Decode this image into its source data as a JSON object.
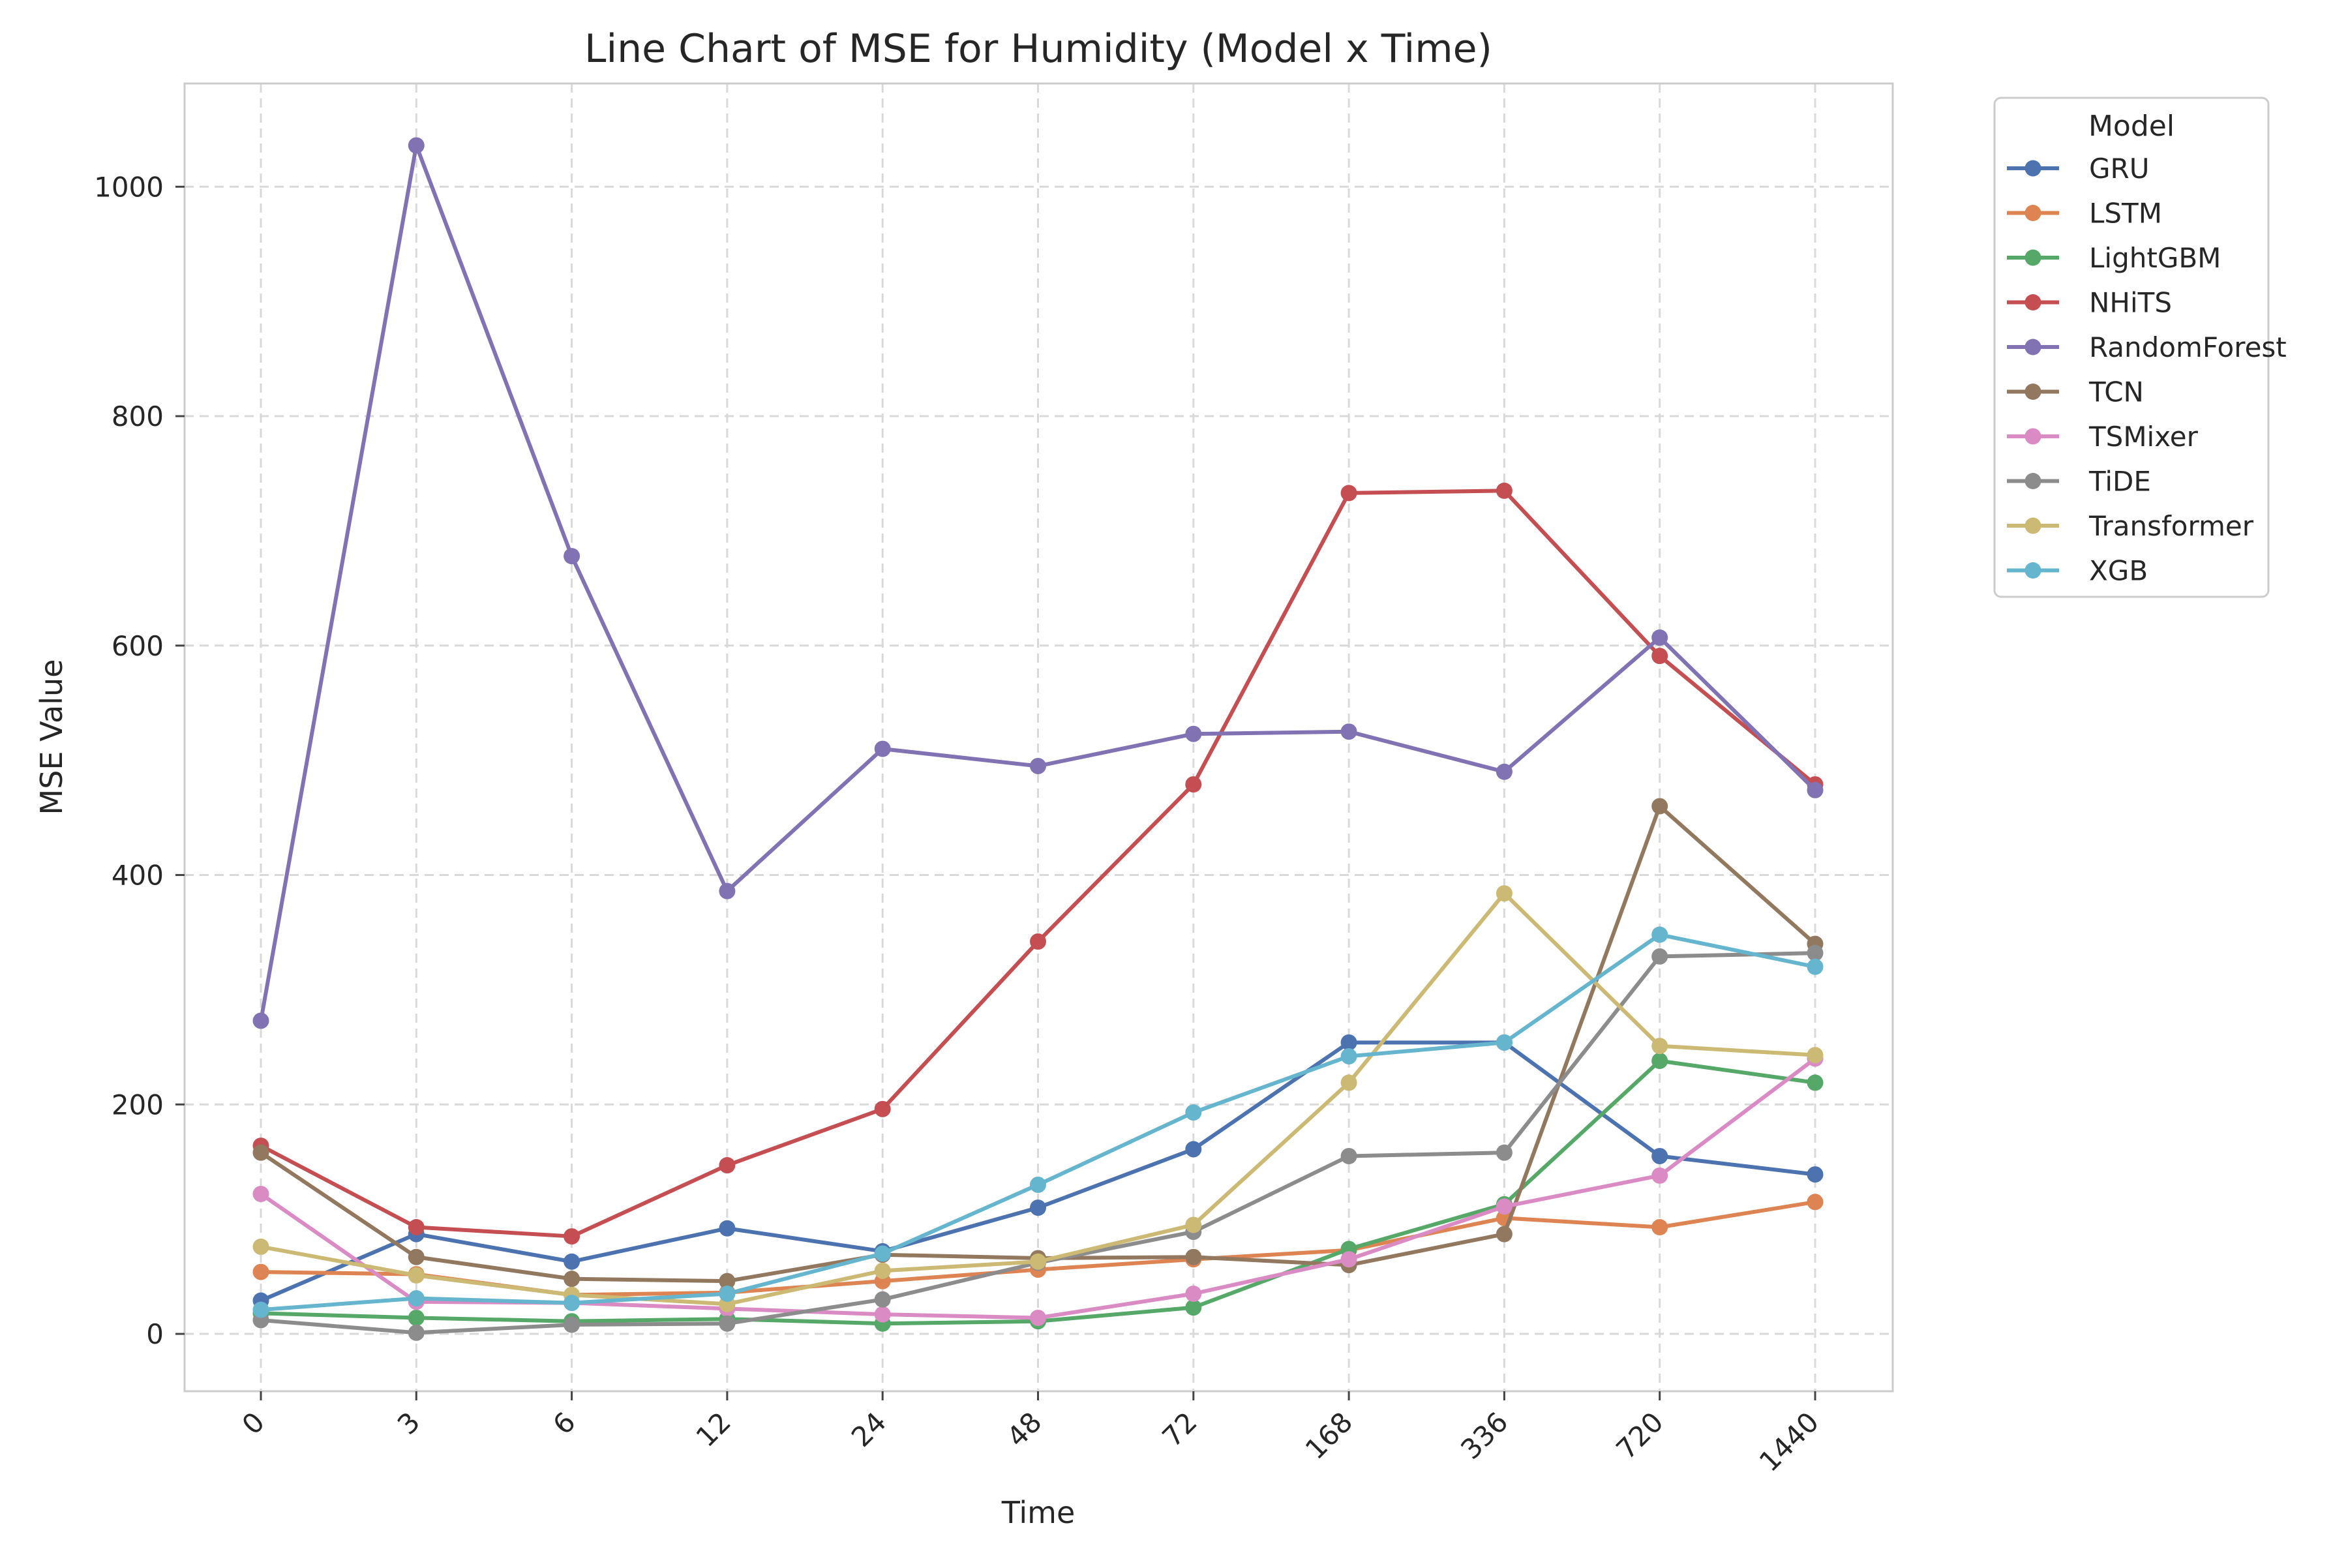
{
  "chart_data": {
    "type": "line",
    "title": "Line Chart of MSE for Humidity (Model x Time)",
    "xlabel": "Time",
    "ylabel": "MSE Value",
    "categories": [
      "0",
      "3",
      "6",
      "12",
      "24",
      "48",
      "72",
      "168",
      "336",
      "720",
      "1440"
    ],
    "ylim": [
      -50,
      1090
    ],
    "yticks": [
      0,
      200,
      400,
      600,
      800,
      1000
    ],
    "grid": true,
    "legend": {
      "title": "Model",
      "placement": "outside-top-right"
    },
    "series": [
      {
        "name": "GRU",
        "color": "#4c72b0",
        "values": [
          29,
          87,
          63,
          92,
          72,
          110,
          161,
          254,
          254,
          155,
          139
        ]
      },
      {
        "name": "LSTM",
        "color": "#dd8452",
        "values": [
          54,
          52,
          34,
          36,
          46,
          56,
          65,
          73,
          101,
          93,
          115
        ]
      },
      {
        "name": "LightGBM",
        "color": "#55a868",
        "values": [
          18,
          14,
          11,
          13,
          9,
          11,
          23,
          74,
          113,
          238,
          219
        ]
      },
      {
        "name": "NHiTS",
        "color": "#c44e52",
        "values": [
          164,
          93,
          85,
          147,
          196,
          342,
          479,
          733,
          735,
          591,
          479
        ]
      },
      {
        "name": "RandomForest",
        "color": "#8172b3",
        "values": [
          273,
          1036,
          678,
          386,
          510,
          495,
          523,
          525,
          490,
          607,
          474
        ]
      },
      {
        "name": "TCN",
        "color": "#937860",
        "values": [
          158,
          67,
          48,
          46,
          69,
          66,
          67,
          60,
          87,
          460,
          340
        ]
      },
      {
        "name": "TSMixer",
        "color": "#da8bc3",
        "values": [
          122,
          28,
          27,
          22,
          17,
          14,
          35,
          65,
          111,
          138,
          240
        ]
      },
      {
        "name": "TiDE",
        "color": "#8c8c8c",
        "values": [
          12,
          1,
          8,
          9,
          30,
          62,
          89,
          155,
          158,
          329,
          332
        ]
      },
      {
        "name": "Transformer",
        "color": "#ccb974",
        "values": [
          76,
          51,
          34,
          26,
          55,
          63,
          95,
          219,
          384,
          251,
          243
        ]
      },
      {
        "name": "XGB",
        "color": "#64b5cd",
        "values": [
          21,
          31,
          27,
          35,
          70,
          130,
          193,
          242,
          254,
          348,
          320
        ]
      }
    ]
  }
}
